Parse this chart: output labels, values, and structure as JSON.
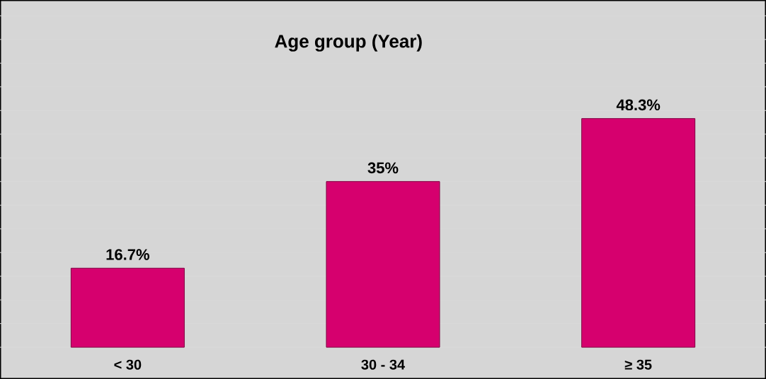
{
  "chart_data": {
    "type": "bar",
    "title": "Age group (Year)",
    "categories": [
      "< 30",
      "30 - 34",
      "≥ 35"
    ],
    "values": [
      16.7,
      35,
      48.3
    ],
    "value_labels": [
      "16.7%",
      "35%",
      "48.3%"
    ],
    "color": "#d6006e",
    "grid": "y",
    "tick_labels": "x"
  }
}
